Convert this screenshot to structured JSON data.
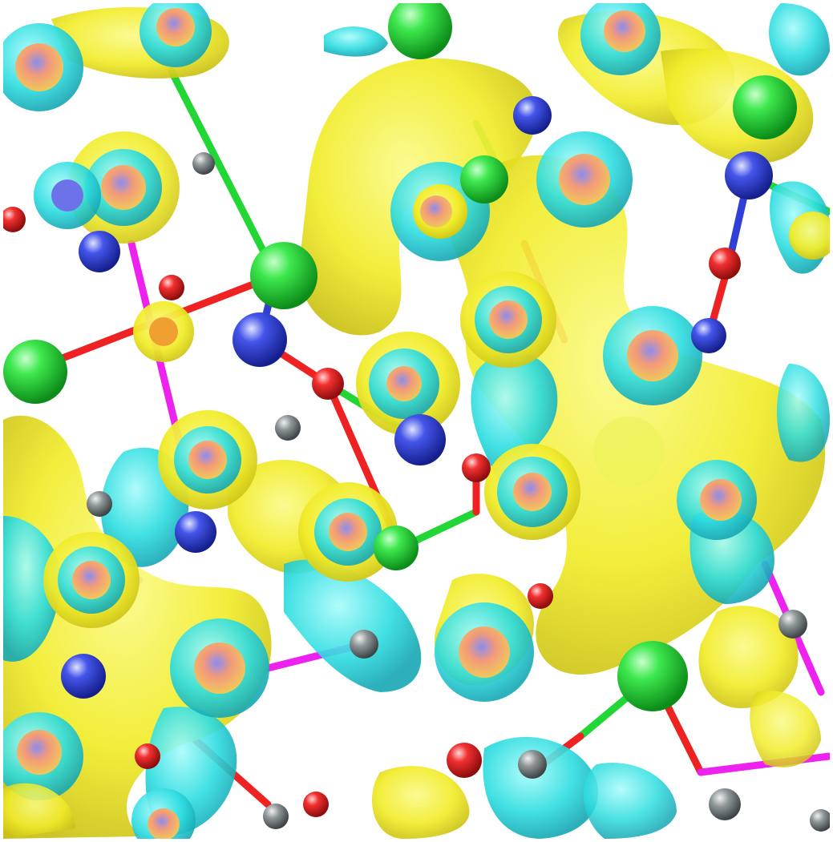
{
  "scene": {
    "kind": "charge-density-difference-isosurface",
    "colors": {
      "background": "#ffffff",
      "accumulation_isosurface": "#f2ee2c",
      "depletion_isosurface": "#28d9dd",
      "overlap_core": "#f29a7a",
      "atom_green": "#22d636",
      "atom_blue": "#2f3fd8",
      "atom_red": "#ee2222",
      "atom_gray": "#8a8f90",
      "bond_magenta": "#ee22ee"
    }
  }
}
